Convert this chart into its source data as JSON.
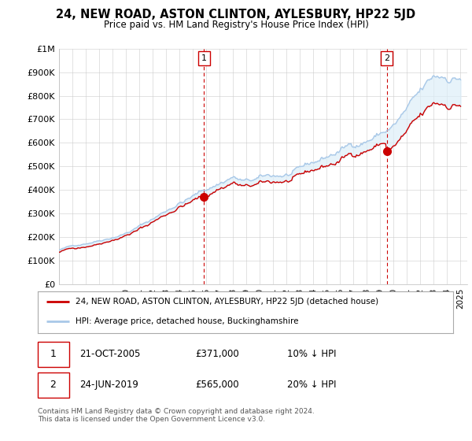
{
  "title": "24, NEW ROAD, ASTON CLINTON, AYLESBURY, HP22 5JD",
  "subtitle": "Price paid vs. HM Land Registry's House Price Index (HPI)",
  "ylabel_ticks": [
    "£0",
    "£100K",
    "£200K",
    "£300K",
    "£400K",
    "£500K",
    "£600K",
    "£700K",
    "£800K",
    "£900K",
    "£1M"
  ],
  "ytick_values": [
    0,
    100000,
    200000,
    300000,
    400000,
    500000,
    600000,
    700000,
    800000,
    900000,
    1000000
  ],
  "ylim": [
    0,
    1000000
  ],
  "xlim_start": 1995.0,
  "xlim_end": 2025.5,
  "hpi_color": "#a8c8e8",
  "hpi_fill_color": "#ddeef8",
  "price_color": "#cc0000",
  "dline_color": "#cc0000",
  "transaction1_x": 2005.82,
  "transaction1_y": 371000,
  "transaction2_x": 2019.49,
  "transaction2_y": 565000,
  "legend_label1": "24, NEW ROAD, ASTON CLINTON, AYLESBURY, HP22 5JD (detached house)",
  "legend_label2": "HPI: Average price, detached house, Buckinghamshire",
  "annotation1_date": "21-OCT-2005",
  "annotation1_price": "£371,000",
  "annotation1_hpi": "10% ↓ HPI",
  "annotation2_date": "24-JUN-2019",
  "annotation2_price": "£565,000",
  "annotation2_hpi": "20% ↓ HPI",
  "footer": "Contains HM Land Registry data © Crown copyright and database right 2024.\nThis data is licensed under the Open Government Licence v3.0.",
  "background_color": "#ffffff",
  "grid_color": "#cccccc"
}
